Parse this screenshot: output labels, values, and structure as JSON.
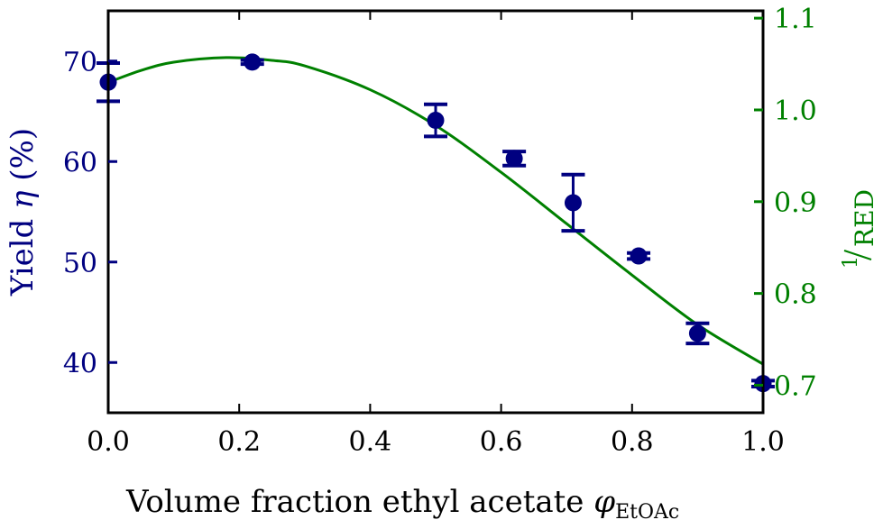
{
  "chart_data": {
    "type": "scatter",
    "xlabel": "Volume fraction ethyl acetate",
    "xlabel_symbol": "φ",
    "xlabel_subscript": "EtOAc",
    "ylabel": "Yield",
    "ylabel_symbol": "η",
    "ylabel_unit": "(%)",
    "y2label_num": "1",
    "y2label_den": "RED",
    "xlim": [
      0.0,
      1.0
    ],
    "ylim": [
      35,
      75
    ],
    "y2lim": [
      0.67,
      1.108
    ],
    "xticks": [
      "0.0",
      "0.2",
      "0.4",
      "0.6",
      "0.8",
      "1.0"
    ],
    "xtick_values": [
      0.0,
      0.2,
      0.4,
      0.6,
      0.8,
      1.0
    ],
    "yticks": [
      "40",
      "50",
      "60",
      "70"
    ],
    "ytick_values": [
      40,
      50,
      60,
      70
    ],
    "y2ticks": [
      "0.7",
      "0.8",
      "0.9",
      "1.0",
      "1.1"
    ],
    "y2tick_values": [
      0.7,
      0.8,
      0.9,
      1.0,
      1.1
    ],
    "series": [
      {
        "name": "Yield",
        "axis": "left",
        "type": "scatter",
        "color": "#000080",
        "x": [
          0.0,
          0.22,
          0.5,
          0.62,
          0.71,
          0.81,
          0.9,
          1.0
        ],
        "y": [
          67.9,
          69.9,
          64.1,
          60.3,
          55.9,
          50.6,
          42.9,
          37.9
        ],
        "yerr": [
          1.9,
          0.2,
          1.6,
          0.7,
          2.8,
          0.3,
          1.0,
          0.3
        ]
      },
      {
        "name": "1/RED",
        "axis": "right",
        "type": "line",
        "color": "#008000",
        "x": [
          0.0,
          0.05,
          0.1,
          0.18,
          0.25,
          0.3,
          0.4,
          0.5,
          0.6,
          0.7,
          0.8,
          0.9,
          1.0
        ],
        "y": [
          1.03,
          1.043,
          1.052,
          1.057,
          1.054,
          1.048,
          1.022,
          0.983,
          0.932,
          0.876,
          0.82,
          0.766,
          0.723
        ]
      }
    ]
  }
}
